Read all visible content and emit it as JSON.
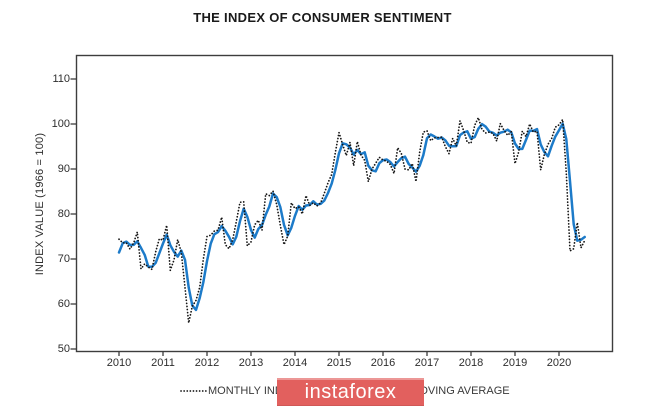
{
  "title": "THE INDEX OF CONSUMER SENTIMENT",
  "watermark": {
    "text": "instaforex",
    "bg_color": "#e2605e",
    "text_color": "#ffffff"
  },
  "colors": {
    "axis": "#3d3d3d",
    "tick_text": "#2e2e2e",
    "monthly_line": "#151515",
    "moving_average_line": "#1d7bc9",
    "legend_text": "#3a3a3a"
  },
  "chart_data": {
    "type": "line",
    "title": "THE INDEX OF CONSUMER SENTIMENT",
    "xlabel": "",
    "ylabel": "INDEX VALUE (1966 = 100)",
    "yticks": [
      50,
      60,
      70,
      80,
      90,
      100,
      110
    ],
    "ylim": [
      49.3,
      115.5
    ],
    "xtick_years": [
      "2010",
      "2011",
      "2012",
      "2013",
      "2014",
      "2015",
      "2016",
      "2017",
      "2018",
      "2019",
      "2020"
    ],
    "grid": false,
    "legend_position": "bottom",
    "start_month": "2010-01",
    "end_month": "2020-08",
    "series": [
      {
        "name": "MONTHLY INDEX",
        "style": "dotted",
        "color": "#151515",
        "values": [
          74.4,
          73.6,
          73.6,
          72.2,
          73.6,
          76.0,
          67.8,
          68.9,
          68.2,
          67.7,
          71.6,
          74.5,
          74.2,
          77.5,
          67.5,
          69.8,
          74.3,
          71.5,
          63.7,
          55.8,
          59.5,
          60.8,
          63.7,
          69.9,
          75.0,
          75.3,
          76.2,
          76.4,
          79.3,
          73.2,
          72.3,
          74.3,
          78.3,
          82.6,
          82.7,
          72.9,
          73.8,
          77.6,
          78.6,
          76.4,
          84.5,
          84.1,
          85.1,
          82.1,
          77.5,
          73.2,
          75.1,
          82.5,
          81.2,
          81.6,
          80.0,
          84.1,
          81.9,
          82.5,
          81.8,
          82.5,
          84.6,
          86.9,
          88.8,
          93.6,
          98.1,
          95.4,
          93.0,
          95.9,
          90.7,
          96.1,
          93.1,
          91.9,
          87.2,
          90.0,
          91.3,
          92.6,
          92.0,
          91.7,
          91.0,
          89.0,
          94.7,
          93.5,
          90.0,
          89.8,
          91.2,
          87.2,
          93.8,
          98.2,
          98.5,
          96.3,
          96.9,
          97.0,
          97.1,
          95.0,
          93.4,
          96.8,
          95.1,
          100.7,
          98.5,
          95.9,
          95.7,
          99.7,
          101.4,
          98.8,
          98.0,
          98.2,
          97.9,
          96.2,
          100.1,
          98.6,
          97.5,
          98.3,
          91.2,
          93.8,
          98.4,
          97.2,
          100.0,
          98.2,
          98.4,
          89.8,
          93.2,
          95.5,
          96.8,
          99.3,
          99.8,
          101.0,
          89.1,
          71.8,
          72.3,
          78.1,
          72.5,
          74.1
        ]
      },
      {
        "name": "3-MONTH MOVING AVERAGE",
        "style": "solid",
        "color": "#1d7bc9",
        "derived_from": "MONTHLY INDEX",
        "window": 3,
        "seed_prior_values": [
          67.4,
          72.5
        ]
      }
    ]
  }
}
